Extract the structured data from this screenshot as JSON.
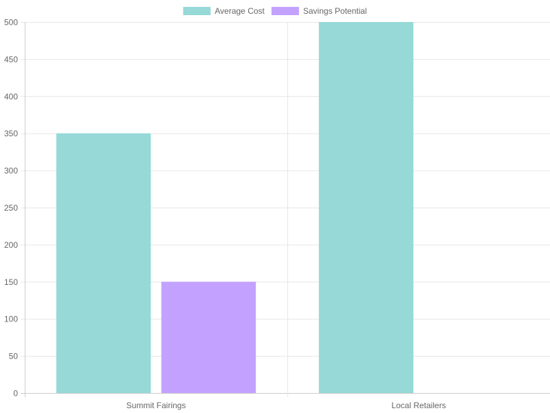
{
  "chart_data": {
    "type": "bar",
    "categories": [
      "Summit Fairings",
      "Local Retailers"
    ],
    "series": [
      {
        "name": "Average Cost",
        "values": [
          350,
          500
        ],
        "color": "#96d9d7"
      },
      {
        "name": "Savings Potential",
        "values": [
          150,
          0
        ],
        "color": "#c3a2ff"
      }
    ],
    "ylim": [
      0,
      500
    ],
    "yticks": [
      "0",
      "50",
      "100",
      "150",
      "200",
      "250",
      "300",
      "350",
      "400",
      "450",
      "500"
    ],
    "grid": true,
    "legend": "top-center"
  }
}
